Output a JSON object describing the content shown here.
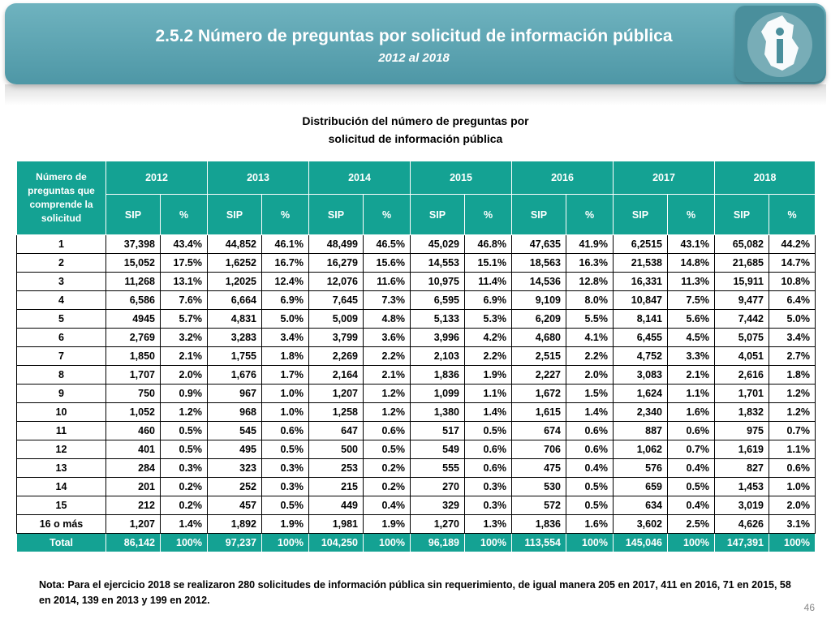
{
  "header": {
    "title": "2.5.2 Número de preguntas por solicitud de información pública",
    "subtitle": "2012 al 2018",
    "logo_icon": "info-building-logo-icon"
  },
  "table_title_line1": "Distribución del número de preguntas por",
  "table_title_line2": "solicitud de información pública",
  "table": {
    "row_header": "Número de preguntas que comprende la solicitud",
    "years": [
      "2012",
      "2013",
      "2014",
      "2015",
      "2016",
      "2017",
      "2018"
    ],
    "sub_headers": [
      "SIP",
      "%"
    ],
    "rows": [
      {
        "label": "1",
        "cells": [
          "37,398",
          "43.4%",
          "44,852",
          "46.1%",
          "48,499",
          "46.5%",
          "45,029",
          "46.8%",
          "47,635",
          "41.9%",
          "6,2515",
          "43.1%",
          "65,082",
          "44.2%"
        ]
      },
      {
        "label": "2",
        "cells": [
          "15,052",
          "17.5%",
          "1,6252",
          "16.7%",
          "16,279",
          "15.6%",
          "14,553",
          "15.1%",
          "18,563",
          "16.3%",
          "21,538",
          "14.8%",
          "21,685",
          "14.7%"
        ]
      },
      {
        "label": "3",
        "cells": [
          "11,268",
          "13.1%",
          "1,2025",
          "12.4%",
          "12,076",
          "11.6%",
          "10,975",
          "11.4%",
          "14,536",
          "12.8%",
          "16,331",
          "11.3%",
          "15,911",
          "10.8%"
        ]
      },
      {
        "label": "4",
        "cells": [
          "6,586",
          "7.6%",
          "6,664",
          "6.9%",
          "7,645",
          "7.3%",
          "6,595",
          "6.9%",
          "9,109",
          "8.0%",
          "10,847",
          "7.5%",
          "9,477",
          "6.4%"
        ]
      },
      {
        "label": "5",
        "cells": [
          "4945",
          "5.7%",
          "4,831",
          "5.0%",
          "5,009",
          "4.8%",
          "5,133",
          "5.3%",
          "6,209",
          "5.5%",
          "8,141",
          "5.6%",
          "7,442",
          "5.0%"
        ]
      },
      {
        "label": "6",
        "cells": [
          "2,769",
          "3.2%",
          "3,283",
          "3.4%",
          "3,799",
          "3.6%",
          "3,996",
          "4.2%",
          "4,680",
          "4.1%",
          "6,455",
          "4.5%",
          "5,075",
          "3.4%"
        ]
      },
      {
        "label": "7",
        "cells": [
          "1,850",
          "2.1%",
          "1,755",
          "1.8%",
          "2,269",
          "2.2%",
          "2,103",
          "2.2%",
          "2,515",
          "2.2%",
          "4,752",
          "3.3%",
          "4,051",
          "2.7%"
        ]
      },
      {
        "label": "8",
        "cells": [
          "1,707",
          "2.0%",
          "1,676",
          "1.7%",
          "2,164",
          "2.1%",
          "1,836",
          "1.9%",
          "2,227",
          "2.0%",
          "3,083",
          "2.1%",
          "2,616",
          "1.8%"
        ]
      },
      {
        "label": "9",
        "cells": [
          "750",
          "0.9%",
          "967",
          "1.0%",
          "1,207",
          "1.2%",
          "1,099",
          "1.1%",
          "1,672",
          "1.5%",
          "1,624",
          "1.1%",
          "1,701",
          "1.2%"
        ]
      },
      {
        "label": "10",
        "cells": [
          "1,052",
          "1.2%",
          "968",
          "1.0%",
          "1,258",
          "1.2%",
          "1,380",
          "1.4%",
          "1,615",
          "1.4%",
          "2,340",
          "1.6%",
          "1,832",
          "1.2%"
        ]
      },
      {
        "label": "11",
        "cells": [
          "460",
          "0.5%",
          "545",
          "0.6%",
          "647",
          "0.6%",
          "517",
          "0.5%",
          "674",
          "0.6%",
          "887",
          "0.6%",
          "975",
          "0.7%"
        ]
      },
      {
        "label": "12",
        "cells": [
          "401",
          "0.5%",
          "495",
          "0.5%",
          "500",
          "0.5%",
          "549",
          "0.6%",
          "706",
          "0.6%",
          "1,062",
          "0.7%",
          "1,619",
          "1.1%"
        ]
      },
      {
        "label": "13",
        "cells": [
          "284",
          "0.3%",
          "323",
          "0.3%",
          "253",
          "0.2%",
          "555",
          "0.6%",
          "475",
          "0.4%",
          "576",
          "0.4%",
          "827",
          "0.6%"
        ]
      },
      {
        "label": "14",
        "cells": [
          "201",
          "0.2%",
          "252",
          "0.3%",
          "215",
          "0.2%",
          "270",
          "0.3%",
          "530",
          "0.5%",
          "659",
          "0.5%",
          "1,453",
          "1.0%"
        ]
      },
      {
        "label": "15",
        "cells": [
          "212",
          "0.2%",
          "457",
          "0.5%",
          "449",
          "0.4%",
          "329",
          "0.3%",
          "572",
          "0.5%",
          "634",
          "0.4%",
          "3,019",
          "2.0%"
        ]
      },
      {
        "label": "16 o más",
        "cells": [
          "1,207",
          "1.4%",
          "1,892",
          "1.9%",
          "1,981",
          "1.9%",
          "1,270",
          "1.3%",
          "1,836",
          "1.6%",
          "3,602",
          "2.5%",
          "4,626",
          "3.1%"
        ]
      }
    ],
    "total": {
      "label": "Total",
      "cells": [
        "86,142",
        "100%",
        "97,237",
        "100%",
        "104,250",
        "100%",
        "96,189",
        "100%",
        "113,554",
        "100%",
        "145,046",
        "100%",
        "147,391",
        "100%"
      ]
    }
  },
  "note": "Nota: Para el ejercicio 2018 se realizaron 280 solicitudes de información pública sin requerimiento, de igual manera 205 en 2017, 411 en 2016, 71 en 2015, 58 en 2014, 139 en 2013 y 199 en 2012.",
  "page_number": "46",
  "colors": {
    "banner": "#5ba5b2",
    "table_header": "#14a293",
    "text": "#000000"
  }
}
